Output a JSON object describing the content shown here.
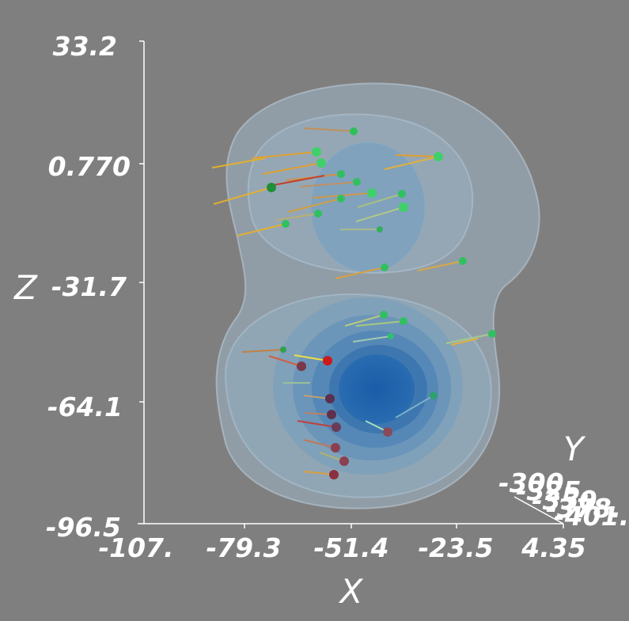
{
  "axes": {
    "x": {
      "title": "X",
      "ticks": [
        "-107.",
        "-79.3",
        "-51.4",
        "-23.5",
        "4.35"
      ]
    },
    "z": {
      "title": "Z",
      "ticks": [
        "33.2",
        "0.770",
        "-31.7",
        "-64.1",
        "-96.5"
      ]
    },
    "y": {
      "title": "Y",
      "ticks": [
        "-300.",
        "-325.",
        "-350.",
        "-378.",
        "-401."
      ]
    }
  },
  "colors": {
    "background": "#7f7f7f",
    "outer_isosurface": "#a9c4d6",
    "inner_isosurface_core": "#1f5fa8",
    "point_green": "#2fbf5a",
    "point_red": "#cc1a1a",
    "point_maroon": "#7a3848",
    "arrow_orange": "#e0a030",
    "arrow_green": "#9ccf88",
    "arrow_red": "#cc4030"
  }
}
